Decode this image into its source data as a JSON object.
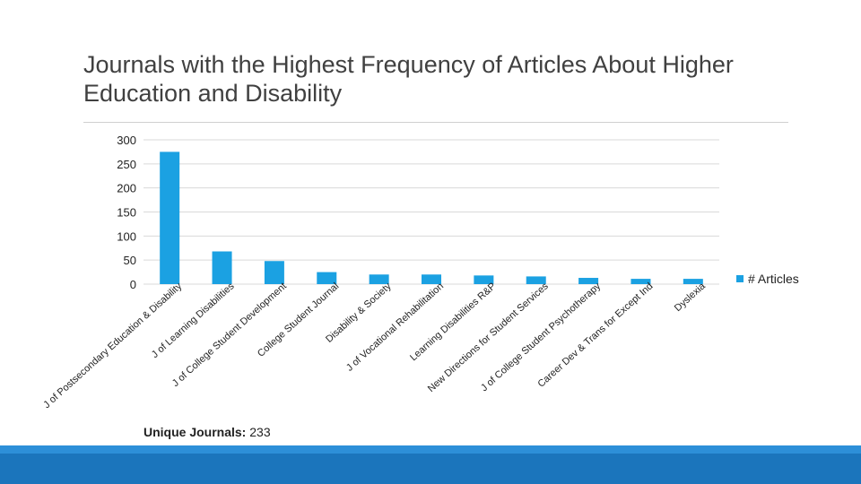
{
  "slide": {
    "title": "Journals with the Highest Frequency of Articles About Higher Education and Disability",
    "footnote_label": "Unique Journals:",
    "footnote_value": "233"
  },
  "colors": {
    "bar": "#1ba1e2",
    "grid": "#d9d9d9",
    "text": "#222222",
    "bottom_bar": "#1b75bc"
  },
  "chart_data": {
    "type": "bar",
    "title": "",
    "xlabel": "",
    "ylabel": "",
    "ylim": [
      0,
      300
    ],
    "yticks": [
      0,
      50,
      100,
      150,
      200,
      250,
      300
    ],
    "grid": true,
    "legend": "right",
    "categories": [
      "J of Postsecondary Education & Disability",
      "J of Learning Disabilities",
      "J of College Student Development",
      "College Student Journal",
      "Disability & Society",
      "J of Vocational Rehabilitation",
      "Learning Disabilities R&P",
      "New Directions for Student Services",
      "J of College Student Psychotherapy",
      "Career Dev & Trans for Except Ind",
      "Dyslexia"
    ],
    "series": [
      {
        "name": "# Articles",
        "values": [
          275,
          68,
          48,
          25,
          20,
          20,
          18,
          16,
          13,
          11,
          11
        ]
      }
    ]
  }
}
